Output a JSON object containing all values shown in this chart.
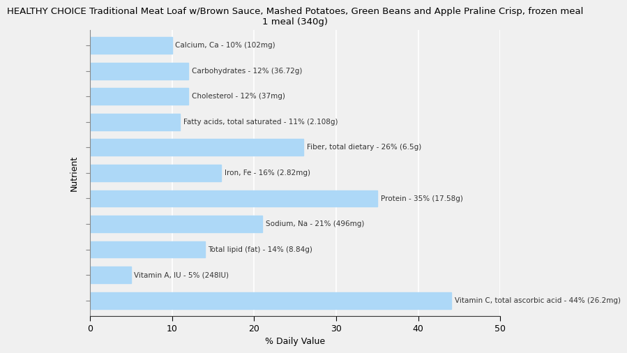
{
  "title": "HEALTHY CHOICE Traditional Meat Loaf w/Brown Sauce, Mashed Potatoes, Green Beans and Apple Praline Crisp, frozen meal\n1 meal (340g)",
  "xlabel": "% Daily Value",
  "ylabel": "Nutrient",
  "bar_color": "#add8f7",
  "background_color": "#f0f0f0",
  "xlim": [
    0,
    50
  ],
  "xticks": [
    0,
    10,
    20,
    30,
    40,
    50
  ],
  "nutrients": [
    "Calcium, Ca - 10% (102mg)",
    "Carbohydrates - 12% (36.72g)",
    "Cholesterol - 12% (37mg)",
    "Fatty acids, total saturated - 11% (2.108g)",
    "Fiber, total dietary - 26% (6.5g)",
    "Iron, Fe - 16% (2.82mg)",
    "Protein - 35% (17.58g)",
    "Sodium, Na - 21% (496mg)",
    "Total lipid (fat) - 14% (8.84g)",
    "Vitamin A, IU - 5% (248IU)",
    "Vitamin C, total ascorbic acid - 44% (26.2mg)"
  ],
  "values": [
    10,
    12,
    12,
    11,
    26,
    16,
    35,
    21,
    14,
    5,
    44
  ]
}
